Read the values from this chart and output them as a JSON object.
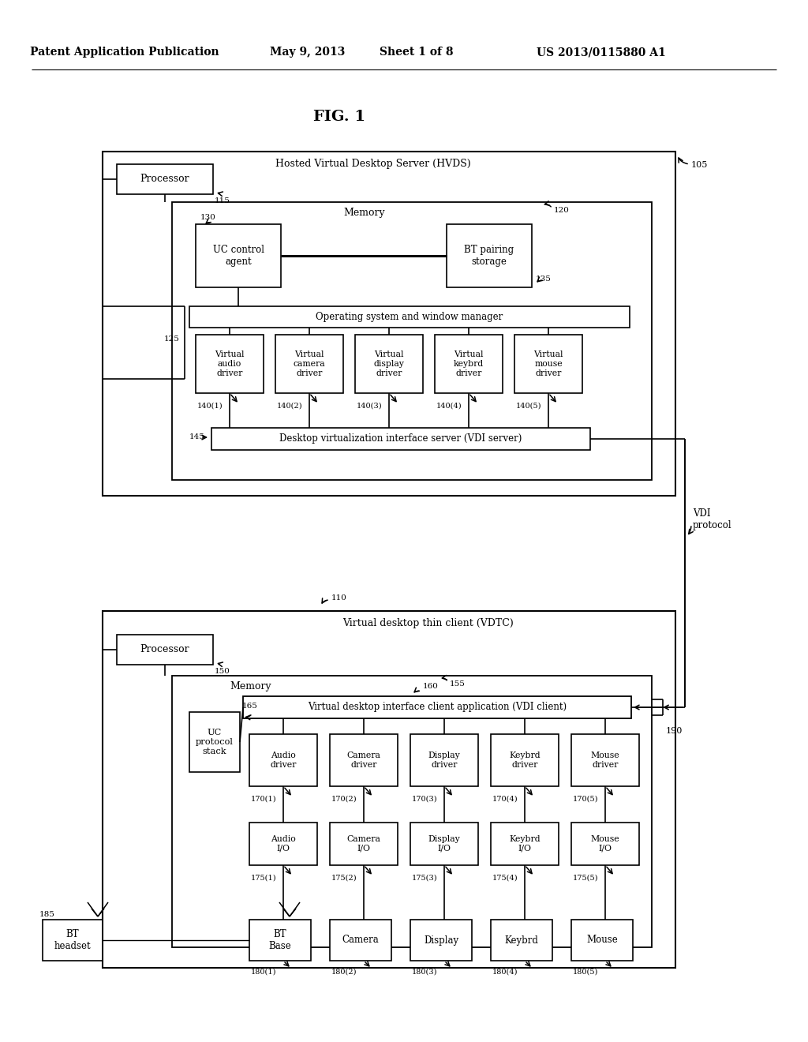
{
  "bg_color": "#ffffff",
  "header_text": "Patent Application Publication",
  "header_date": "May 9, 2013",
  "header_sheet": "Sheet 1 of 8",
  "header_patent": "US 2013/0115880 A1",
  "fig_label": "FIG. 1",
  "top_box_label": "Hosted Virtual Desktop Server (HVDS)",
  "top_box_ref": "105",
  "processor_top_label": "Processor",
  "processor_top_ref": "115",
  "memory_top_label": "Memory",
  "memory_top_ref": "120",
  "uc_control_label": "UC control\nagent",
  "uc_control_ref": "130",
  "bt_pairing_label": "BT pairing\nstorage",
  "bt_pairing_ref": "135",
  "os_label": "Operating system and window manager",
  "os_ref": "125",
  "virt_drivers": [
    "Virtual\naudio\ndriver",
    "Virtual\ncamera\ndriver",
    "Virtual\ndisplay\ndriver",
    "Virtual\nkeybrd\ndriver",
    "Virtual\nmouse\ndriver"
  ],
  "virt_driver_refs": [
    "140(1)",
    "140(2)",
    "140(3)",
    "140(4)",
    "140(5)"
  ],
  "vdi_server_label": "Desktop virtualization interface server (VDI server)",
  "vdi_server_ref": "145",
  "bottom_box_label": "Virtual desktop thin client (VDTC)",
  "bottom_box_ref": "110",
  "processor_bot_label": "Processor",
  "processor_bot_ref": "150",
  "memory_bot_label": "Memory",
  "memory_bot_ref": "155",
  "vdi_client_label": "Virtual desktop interface client application (VDI client)",
  "vdi_client_ref": "160",
  "uc_protocol_label": "UC\nprotocol\nstack",
  "uc_protocol_ref": "165",
  "drivers_bot": [
    "Audio\ndriver",
    "Camera\ndriver",
    "Display\ndriver",
    "Keybrd\ndriver",
    "Mouse\ndriver"
  ],
  "driver_bot_refs": [
    "170(1)",
    "170(2)",
    "170(3)",
    "170(4)",
    "170(5)"
  ],
  "io_boxes": [
    "Audio\nI/O",
    "Camera\nI/O",
    "Display\nI/O",
    "Keybrd\nI/O",
    "Mouse\nI/O"
  ],
  "io_refs": [
    "175(1)",
    "175(2)",
    "175(3)",
    "175(4)",
    "175(5)"
  ],
  "hw_boxes": [
    "BT\nBase",
    "Camera",
    "Display",
    "Keybrd",
    "Mouse"
  ],
  "hw_refs": [
    "180(1)",
    "180(2)",
    "180(3)",
    "180(4)",
    "180(5)"
  ],
  "bt_headset_label": "BT\nheadset",
  "bt_headset_ref": "185",
  "vdi_protocol_label": "VDI\nprotocol",
  "connect_ref": "190"
}
